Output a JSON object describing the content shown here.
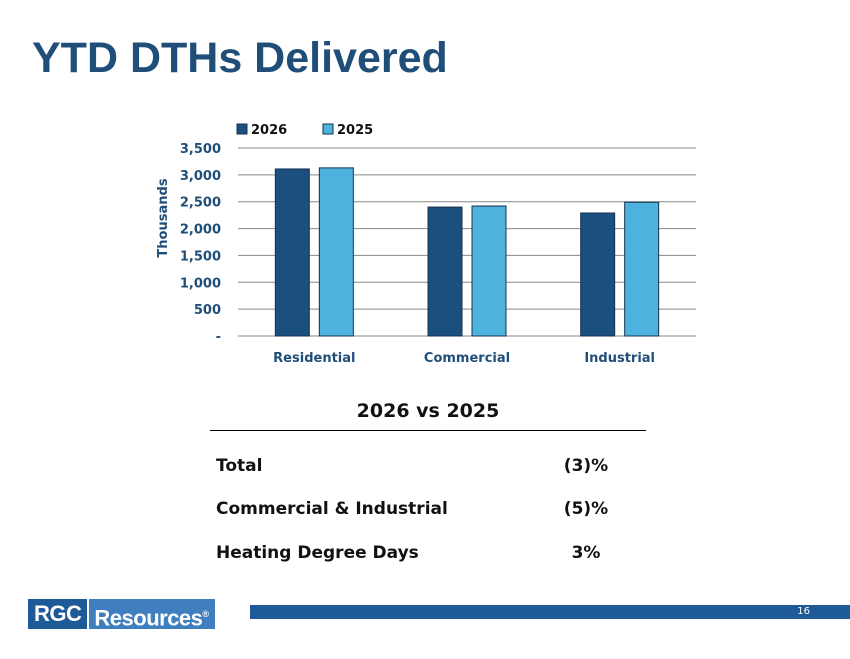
{
  "title": "YTD DTHs Delivered",
  "chart_data": {
    "type": "bar",
    "categories": [
      "Residential",
      "Commercial",
      "Industrial"
    ],
    "series": [
      {
        "name": "2026",
        "values": [
          3110,
          2400,
          2290
        ],
        "color": "#1a4f7e"
      },
      {
        "name": "2025",
        "values": [
          3130,
          2420,
          2490
        ],
        "color": "#4db3de"
      }
    ],
    "ylabel": "Thousands",
    "ylim": [
      0,
      3500
    ],
    "yticks": [
      0,
      500,
      1000,
      1500,
      2000,
      2500,
      3000,
      3500
    ],
    "ytick_labels": [
      "-",
      "500",
      "1,000",
      "1,500",
      "2,000",
      "2,500",
      "3,000",
      "3,500"
    ],
    "grid": true,
    "legend_position": "top-left"
  },
  "comparison": {
    "heading": "2026 vs 2025",
    "rows": [
      {
        "label": "Total",
        "value": "(3)%"
      },
      {
        "label": "Commercial & Industrial",
        "value": "(5)%"
      },
      {
        "label": "Heating Degree Days",
        "value": "3%"
      }
    ]
  },
  "footer": {
    "logo_part1": "RGC",
    "logo_part2": "Resources",
    "logo_mark": "®",
    "page_number": "16"
  }
}
